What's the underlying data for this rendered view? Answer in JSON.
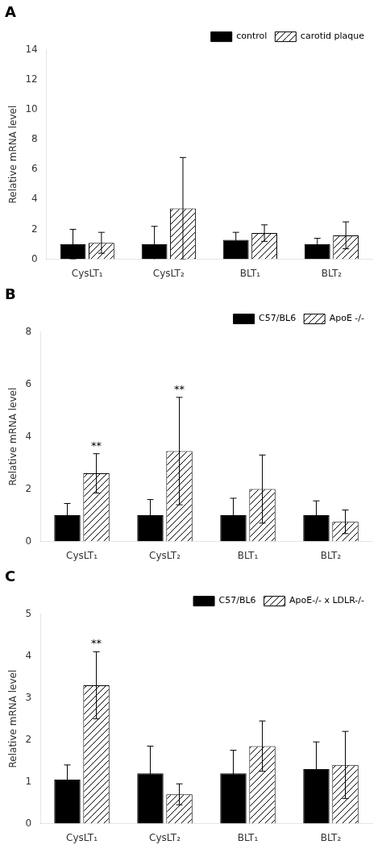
{
  "chart_data": [
    {
      "type": "bar",
      "title": "A",
      "y_label": "Relative mRNA level",
      "categories": [
        "CysLT₁",
        "CysLT₂",
        "BLT₁",
        "BLT₂"
      ],
      "series": [
        {
          "name": "control",
          "color": "#000000",
          "values": [
            1.0,
            1.0,
            1.3,
            1.0
          ],
          "errors": [
            1.0,
            1.2,
            0.5,
            0.4
          ]
        },
        {
          "name": "carotid plaque",
          "color": "#ffffff",
          "values": [
            1.1,
            3.4,
            1.75,
            1.6
          ],
          "errors": [
            0.7,
            3.4,
            0.55,
            0.9
          ]
        }
      ],
      "ylim": [
        0,
        14
      ],
      "yticks": [
        0,
        2,
        4,
        6,
        8,
        10,
        12,
        14
      ],
      "grid": false,
      "legend": "upper right"
    },
    {
      "type": "bar",
      "title": "B",
      "y_label": "Relative mRNA level",
      "categories": [
        "CysLT₁",
        "CysLT₂",
        "BLT₁",
        "BLT₂"
      ],
      "series": [
        {
          "name": "C57/BL6",
          "color": "#000000",
          "values": [
            1.0,
            1.0,
            1.0,
            1.0
          ],
          "errors": [
            0.45,
            0.6,
            0.65,
            0.55
          ]
        },
        {
          "name": "ApoE -/-",
          "color": "#ffffff",
          "values": [
            2.6,
            3.45,
            2.0,
            0.75
          ],
          "errors": [
            0.75,
            2.05,
            1.3,
            0.45
          ]
        }
      ],
      "annotations": [
        {
          "category": "CysLT₁",
          "series": "ApoE -/-",
          "text": "**"
        },
        {
          "category": "CysLT₂",
          "series": "ApoE -/-",
          "text": "**"
        }
      ],
      "ylim": [
        0,
        8
      ],
      "yticks": [
        0,
        2,
        4,
        6,
        8
      ],
      "grid": false,
      "legend": "upper right"
    },
    {
      "type": "bar",
      "title": "C",
      "y_label": "Relative mRNA level",
      "categories": [
        "CysLT₁",
        "CysLT₂",
        "BLT₁",
        "BLT₂"
      ],
      "series": [
        {
          "name": "C57/BL6",
          "color": "#000000",
          "values": [
            1.05,
            1.2,
            1.2,
            1.3
          ],
          "errors": [
            0.35,
            0.65,
            0.55,
            0.65
          ]
        },
        {
          "name": "ApoE-/- x LDLR-/-",
          "color": "#ffffff",
          "values": [
            3.3,
            0.7,
            1.85,
            1.4
          ],
          "errors": [
            0.8,
            0.25,
            0.6,
            0.8
          ]
        }
      ],
      "annotations": [
        {
          "category": "CysLT₁",
          "series": "ApoE-/- x LDLR-/-",
          "text": "**"
        }
      ],
      "ylim": [
        0,
        5
      ],
      "yticks": [
        0,
        1,
        2,
        3,
        4,
        5
      ],
      "grid": false,
      "legend": "upper right"
    }
  ]
}
